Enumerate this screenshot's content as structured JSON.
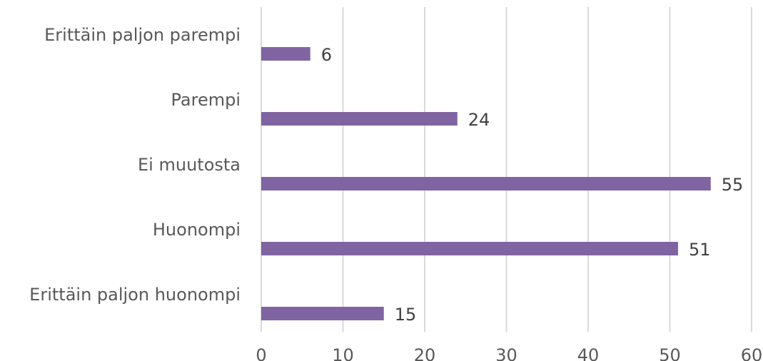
{
  "chart_data": {
    "type": "bar",
    "orientation": "horizontal",
    "categories": [
      "Erittäin paljon parempi",
      "Parempi",
      "Ei muutosta",
      "Huonompi",
      "Erittäin paljon huonompi"
    ],
    "values": [
      6,
      24,
      55,
      51,
      15
    ],
    "xlim": [
      0,
      60
    ],
    "xticks": [
      0,
      10,
      20,
      30,
      40,
      50,
      60
    ],
    "grid": "vertical",
    "legend": "none",
    "data_labels": true,
    "bar_color": "#8064A2"
  }
}
